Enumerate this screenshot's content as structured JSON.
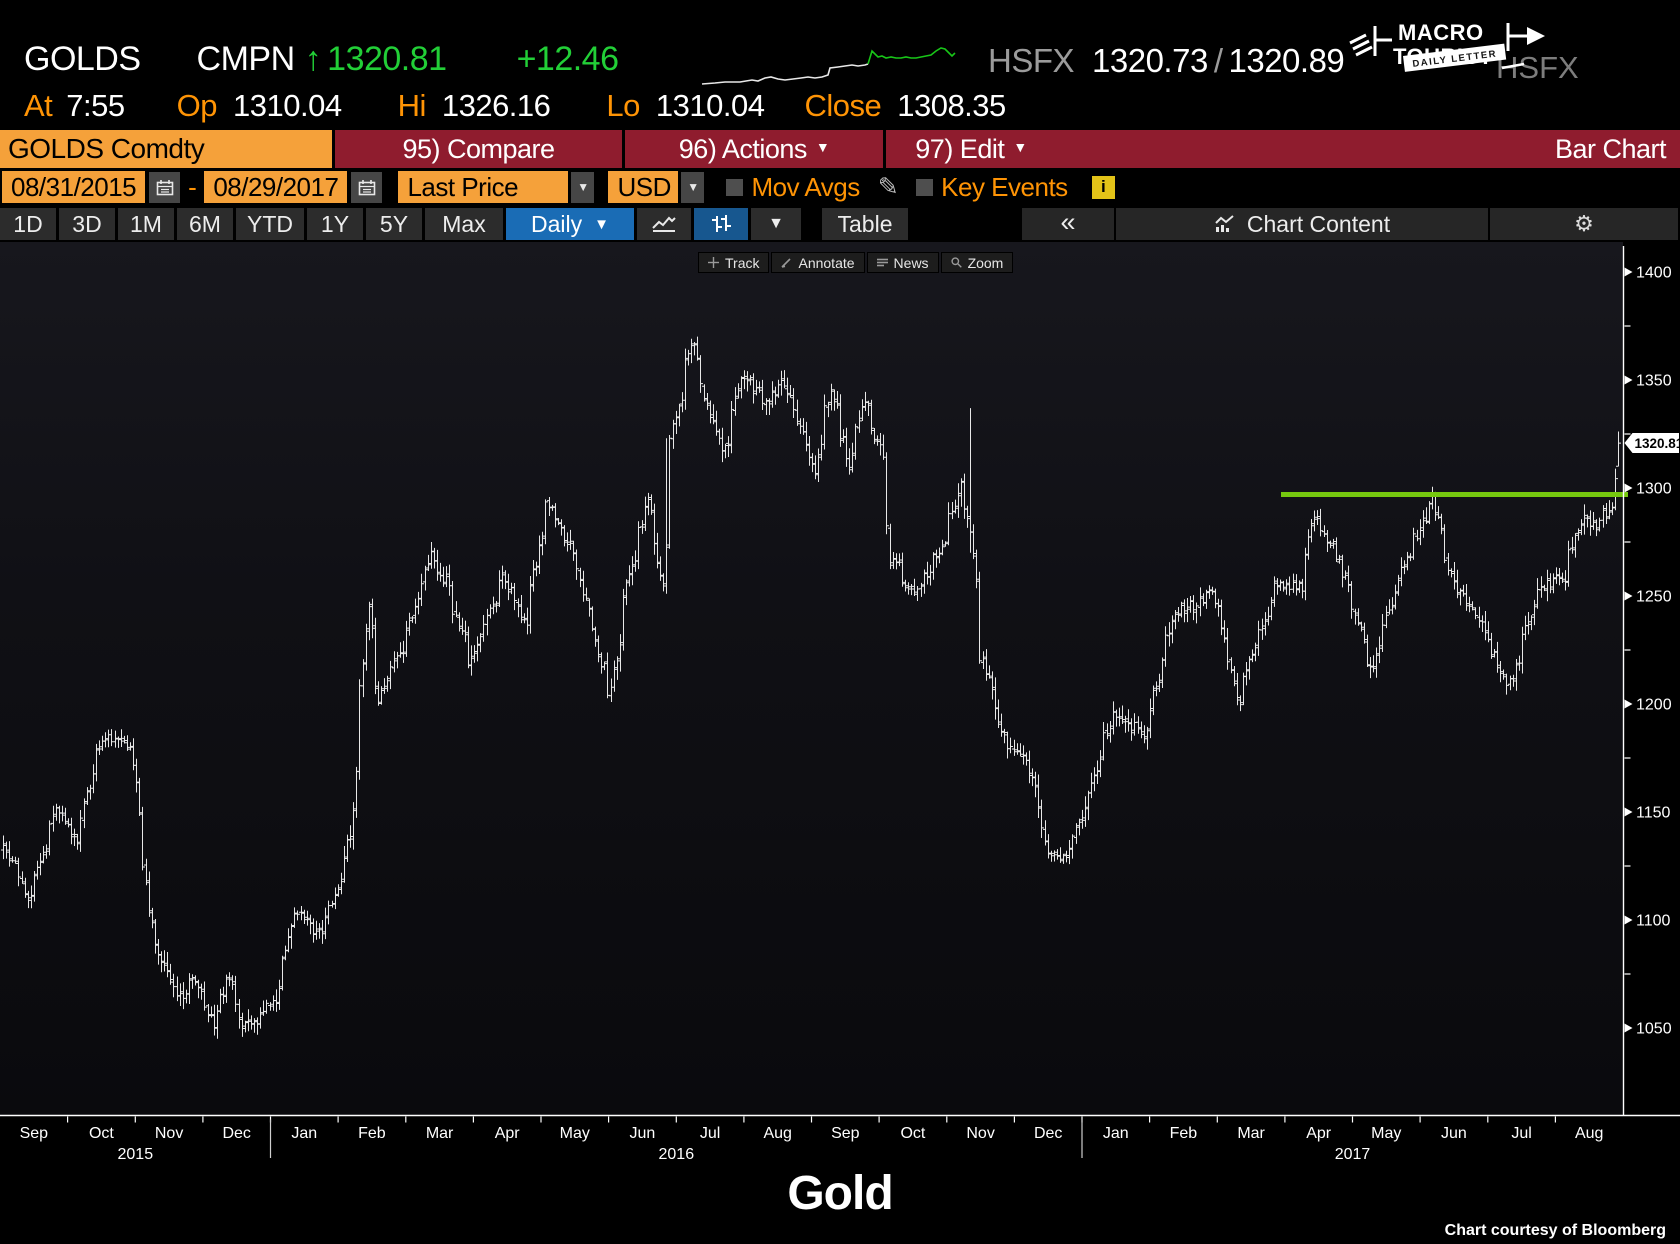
{
  "header": {
    "ticker": "GOLDS",
    "field": "CMPN",
    "arrow": "↑",
    "last": "1320.81",
    "change": "+12.46",
    "at_label": "At",
    "at_time": "7:55",
    "op_label": "Op",
    "open": "1310.04",
    "hi_label": "Hi",
    "high": "1326.16",
    "lo_label": "Lo",
    "low": "1310.04",
    "close_label": "Close",
    "prev_close": "1308.35",
    "source_label": "HSFX",
    "bid": "1320.73",
    "sep": "/",
    "ask": "1320.89",
    "ghost": "HSFX",
    "sparkline": {
      "white": [
        [
          7,
          50
        ],
        [
          20,
          49
        ],
        [
          30,
          48
        ],
        [
          45,
          48
        ],
        [
          57,
          46
        ],
        [
          63,
          47
        ],
        [
          70,
          44
        ],
        [
          76,
          43
        ],
        [
          83,
          45
        ],
        [
          90,
          46
        ],
        [
          98,
          45
        ],
        [
          106,
          44
        ],
        [
          113,
          43
        ],
        [
          120,
          44
        ],
        [
          127,
          43
        ],
        [
          133,
          41
        ],
        [
          135,
          34
        ],
        [
          143,
          33
        ],
        [
          150,
          32
        ],
        [
          157,
          31
        ],
        [
          163,
          32
        ],
        [
          170,
          31
        ],
        [
          173,
          30
        ]
      ],
      "green": [
        [
          173,
          30
        ],
        [
          177,
          17
        ],
        [
          180,
          20
        ],
        [
          183,
          23
        ],
        [
          187,
          22
        ],
        [
          191,
          24
        ],
        [
          196,
          23
        ],
        [
          201,
          24
        ],
        [
          206,
          24
        ],
        [
          211,
          23
        ],
        [
          216,
          24
        ],
        [
          221,
          24
        ],
        [
          226,
          23
        ],
        [
          231,
          22
        ],
        [
          236,
          21
        ],
        [
          241,
          17
        ],
        [
          246,
          14
        ],
        [
          250,
          15
        ],
        [
          254,
          19
        ],
        [
          257,
          22
        ],
        [
          260,
          19
        ]
      ]
    },
    "logo": {
      "line1": "MACRO",
      "line2": "TOURIST",
      "banner": "DAILY LETTER"
    }
  },
  "toolbar": {
    "security": "GOLDS Comdty",
    "compare": "95) Compare",
    "actions": "96) Actions",
    "edit": "97) Edit",
    "chart_type": "Bar Chart"
  },
  "controls": {
    "date_from": "08/31/2015",
    "dash": "-",
    "date_to": "08/29/2017",
    "price_field": "Last Price",
    "currency": "USD",
    "mov_avgs": "Mov Avgs",
    "key_events": "Key Events",
    "info": "i"
  },
  "tabs": {
    "periods": [
      "1D",
      "3D",
      "1M",
      "6M",
      "YTD",
      "1Y",
      "5Y",
      "Max"
    ],
    "period_widths": [
      56,
      56,
      56,
      56,
      68,
      56,
      56,
      78
    ],
    "frequency": "Daily",
    "table": "Table",
    "back": "«",
    "chart_content": "Chart Content",
    "caret": "▼",
    "gear": "⚙"
  },
  "mini_toolbar": [
    {
      "icon": "track-icon",
      "label": "Track"
    },
    {
      "icon": "annotate-icon",
      "label": "Annotate"
    },
    {
      "icon": "news-icon",
      "label": "News"
    },
    {
      "icon": "zoom-icon",
      "label": "Zoom"
    }
  ],
  "chart_data": {
    "type": "bar",
    "title": "Gold",
    "start_date": "2015-08-31",
    "end_date": "2017-08-29",
    "ylim": [
      1040,
      1405
    ],
    "y_ticks": [
      1050,
      1100,
      1150,
      1200,
      1250,
      1300,
      1350,
      1400
    ],
    "y_minor_step": 25,
    "x_months": [
      "Sep",
      "Oct",
      "Nov",
      "Dec",
      "Jan",
      "Feb",
      "Mar",
      "Apr",
      "May",
      "Jun",
      "Jul",
      "Aug",
      "Sep",
      "Oct",
      "Nov",
      "Dec",
      "Jan",
      "Feb",
      "Mar",
      "Apr",
      "May",
      "Jun",
      "Jul",
      "Aug"
    ],
    "x_years": [
      {
        "label": "2015",
        "from_month": 0,
        "to_month": 4
      },
      {
        "label": "2016",
        "from_month": 4,
        "to_month": 16
      },
      {
        "label": "2017",
        "from_month": 16,
        "to_month": 24
      }
    ],
    "last_price_label": "1320.81",
    "last_bar": {
      "open": 1310.04,
      "high": 1326.16,
      "low": 1310.04,
      "close": 1320.81
    },
    "resistance_line": {
      "price": 1297,
      "start_frac": 0.789,
      "color": "#76c80f",
      "width": 5
    },
    "bar_color": "#e8e8e8",
    "anchors": [
      [
        "2015-08-31",
        1134
      ],
      [
        "2015-09-10",
        1110
      ],
      [
        "2015-09-24",
        1152
      ],
      [
        "2015-10-02",
        1138
      ],
      [
        "2015-10-14",
        1184
      ],
      [
        "2015-10-27",
        1180
      ],
      [
        "2015-11-06",
        1088
      ],
      [
        "2015-11-17",
        1064
      ],
      [
        "2015-11-25",
        1073
      ],
      [
        "2015-12-03",
        1052
      ],
      [
        "2015-12-10",
        1074
      ],
      [
        "2015-12-17",
        1050
      ],
      [
        "2015-12-31",
        1061
      ],
      [
        "2016-01-08",
        1104
      ],
      [
        "2016-01-20",
        1094
      ],
      [
        "2016-01-29",
        1116
      ],
      [
        "2016-02-03",
        1141
      ],
      [
        "2016-02-11",
        1245
      ],
      [
        "2016-02-16",
        1202
      ],
      [
        "2016-02-29",
        1234
      ],
      [
        "2016-03-10",
        1268
      ],
      [
        "2016-03-18",
        1255
      ],
      [
        "2016-03-28",
        1218
      ],
      [
        "2016-04-12",
        1257
      ],
      [
        "2016-04-22",
        1238
      ],
      [
        "2016-05-02",
        1293
      ],
      [
        "2016-05-13",
        1272
      ],
      [
        "2016-05-30",
        1204
      ],
      [
        "2016-06-08",
        1260
      ],
      [
        "2016-06-16",
        1293
      ],
      [
        "2016-06-23",
        1257
      ],
      [
        "2016-06-27",
        1322
      ],
      [
        "2016-07-06",
        1368
      ],
      [
        "2016-07-14",
        1332
      ],
      [
        "2016-07-21",
        1318
      ],
      [
        "2016-07-29",
        1352
      ],
      [
        "2016-08-09",
        1340
      ],
      [
        "2016-08-16",
        1352
      ],
      [
        "2016-08-31",
        1308
      ],
      [
        "2016-09-07",
        1347
      ],
      [
        "2016-09-15",
        1312
      ],
      [
        "2016-09-22",
        1340
      ],
      [
        "2016-09-30",
        1316
      ],
      [
        "2016-10-04",
        1268
      ],
      [
        "2016-10-14",
        1250
      ],
      [
        "2016-10-28",
        1274
      ],
      [
        "2016-11-04",
        1302
      ],
      [
        "2016-11-09",
        1280
      ],
      [
        "2016-11-14",
        1222
      ],
      [
        "2016-11-25",
        1182
      ],
      [
        "2016-12-05",
        1172
      ],
      [
        "2016-12-15",
        1128
      ],
      [
        "2016-12-22",
        1131
      ],
      [
        "2016-12-30",
        1150
      ],
      [
        "2017-01-12",
        1196
      ],
      [
        "2017-01-27",
        1186
      ],
      [
        "2017-02-08",
        1240
      ],
      [
        "2017-02-27",
        1253
      ],
      [
        "2017-03-10",
        1198
      ],
      [
        "2017-03-15",
        1220
      ],
      [
        "2017-03-27",
        1254
      ],
      [
        "2017-04-07",
        1254
      ],
      [
        "2017-04-13",
        1288
      ],
      [
        "2017-04-25",
        1264
      ],
      [
        "2017-05-09",
        1216
      ],
      [
        "2017-05-22",
        1260
      ],
      [
        "2017-06-06",
        1294
      ],
      [
        "2017-06-15",
        1254
      ],
      [
        "2017-06-26",
        1242
      ],
      [
        "2017-07-10",
        1207
      ],
      [
        "2017-07-24",
        1254
      ],
      [
        "2017-08-04",
        1258
      ],
      [
        "2017-08-11",
        1286
      ],
      [
        "2017-08-18",
        1283
      ],
      [
        "2017-08-25",
        1290
      ],
      [
        "2017-08-28",
        1305
      ],
      [
        "2017-08-29",
        1320.81
      ]
    ],
    "spikes": {
      "2016-11-09": {
        "high": 1337,
        "low": 1270
      },
      "2016-06-24": {
        "high": 1323,
        "low": 1251
      }
    }
  },
  "footer": {
    "title": "Gold",
    "credit": "Chart courtesy of Bloomberg"
  },
  "colors": {
    "toolbar_red": "#8f1c2e",
    "amber": "#f5a13a",
    "label_orange": "#ff9405",
    "green_text": "#22cf37",
    "blue_button": "#1a6cb5",
    "resistance_green": "#76c80f"
  }
}
